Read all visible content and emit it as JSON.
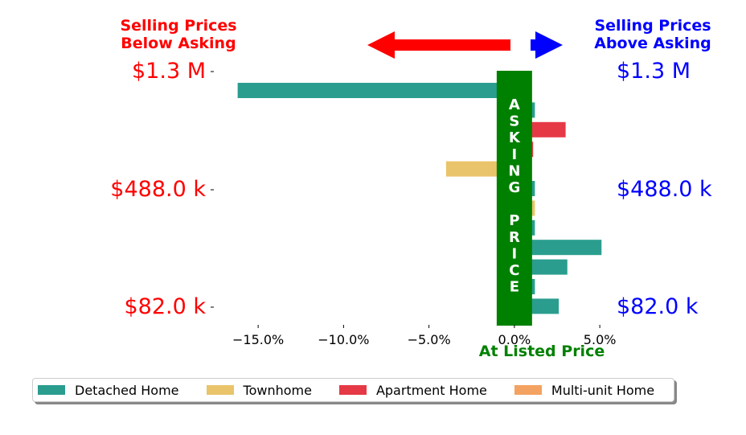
{
  "headers": {
    "below": [
      "Selling Prices",
      "Below Asking"
    ],
    "above": [
      "Selling Prices",
      "Above Asking"
    ]
  },
  "colors": {
    "below": "#ff0000",
    "above": "#0000ff",
    "asking": "#008000",
    "detached": "#2a9d8f",
    "townhome": "#e9c46a",
    "apartment": "#e63946",
    "multiunit": "#f4a261"
  },
  "asking_banner": [
    "A",
    "S",
    "K",
    "I",
    "N",
    "G",
    "",
    "P",
    "R",
    "I",
    "C",
    "E"
  ],
  "at_listed_label": "At Listed Price",
  "price_labels": {
    "left": [
      "$1.3 M",
      "$488.0 k",
      "$82.0 k"
    ],
    "right": [
      "$1.3 M",
      "$488.0 k",
      "$82.0 k"
    ]
  },
  "legend": [
    {
      "label": "Detached Home",
      "color": "#2a9d8f"
    },
    {
      "label": "Townhome",
      "color": "#e9c46a"
    },
    {
      "label": "Apartment Home",
      "color": "#e63946"
    },
    {
      "label": "Multi-unit Home",
      "color": "#f4a261"
    }
  ],
  "chart_data": {
    "type": "bar",
    "orientation": "horizontal",
    "xlabel": "At Listed Price",
    "xlim": [
      -17.5,
      6.5
    ],
    "xticks": [
      -15,
      -10,
      -5,
      0,
      5
    ],
    "xtick_labels": [
      "−15.0%",
      "−10.0%",
      "−5.0%",
      "0.0%",
      "5.0%"
    ],
    "grid": false,
    "legend_position": "bottom",
    "bars": [
      {
        "series": "Detached Home",
        "value": -16.2
      },
      {
        "series": "Detached Home",
        "value": 1.2
      },
      {
        "series": "Apartment Home",
        "value": 3.0
      },
      {
        "series": "Apartment Home",
        "value": 1.1
      },
      {
        "series": "Townhome",
        "value": -4.0
      },
      {
        "series": "Detached Home",
        "value": 1.2
      },
      {
        "series": "Townhome",
        "value": 1.2
      },
      {
        "series": "Detached Home",
        "value": 1.2
      },
      {
        "series": "Detached Home",
        "value": 5.1
      },
      {
        "series": "Detached Home",
        "value": 3.1
      },
      {
        "series": "Detached Home",
        "value": 1.2
      },
      {
        "series": "Detached Home",
        "value": 2.6
      }
    ]
  }
}
